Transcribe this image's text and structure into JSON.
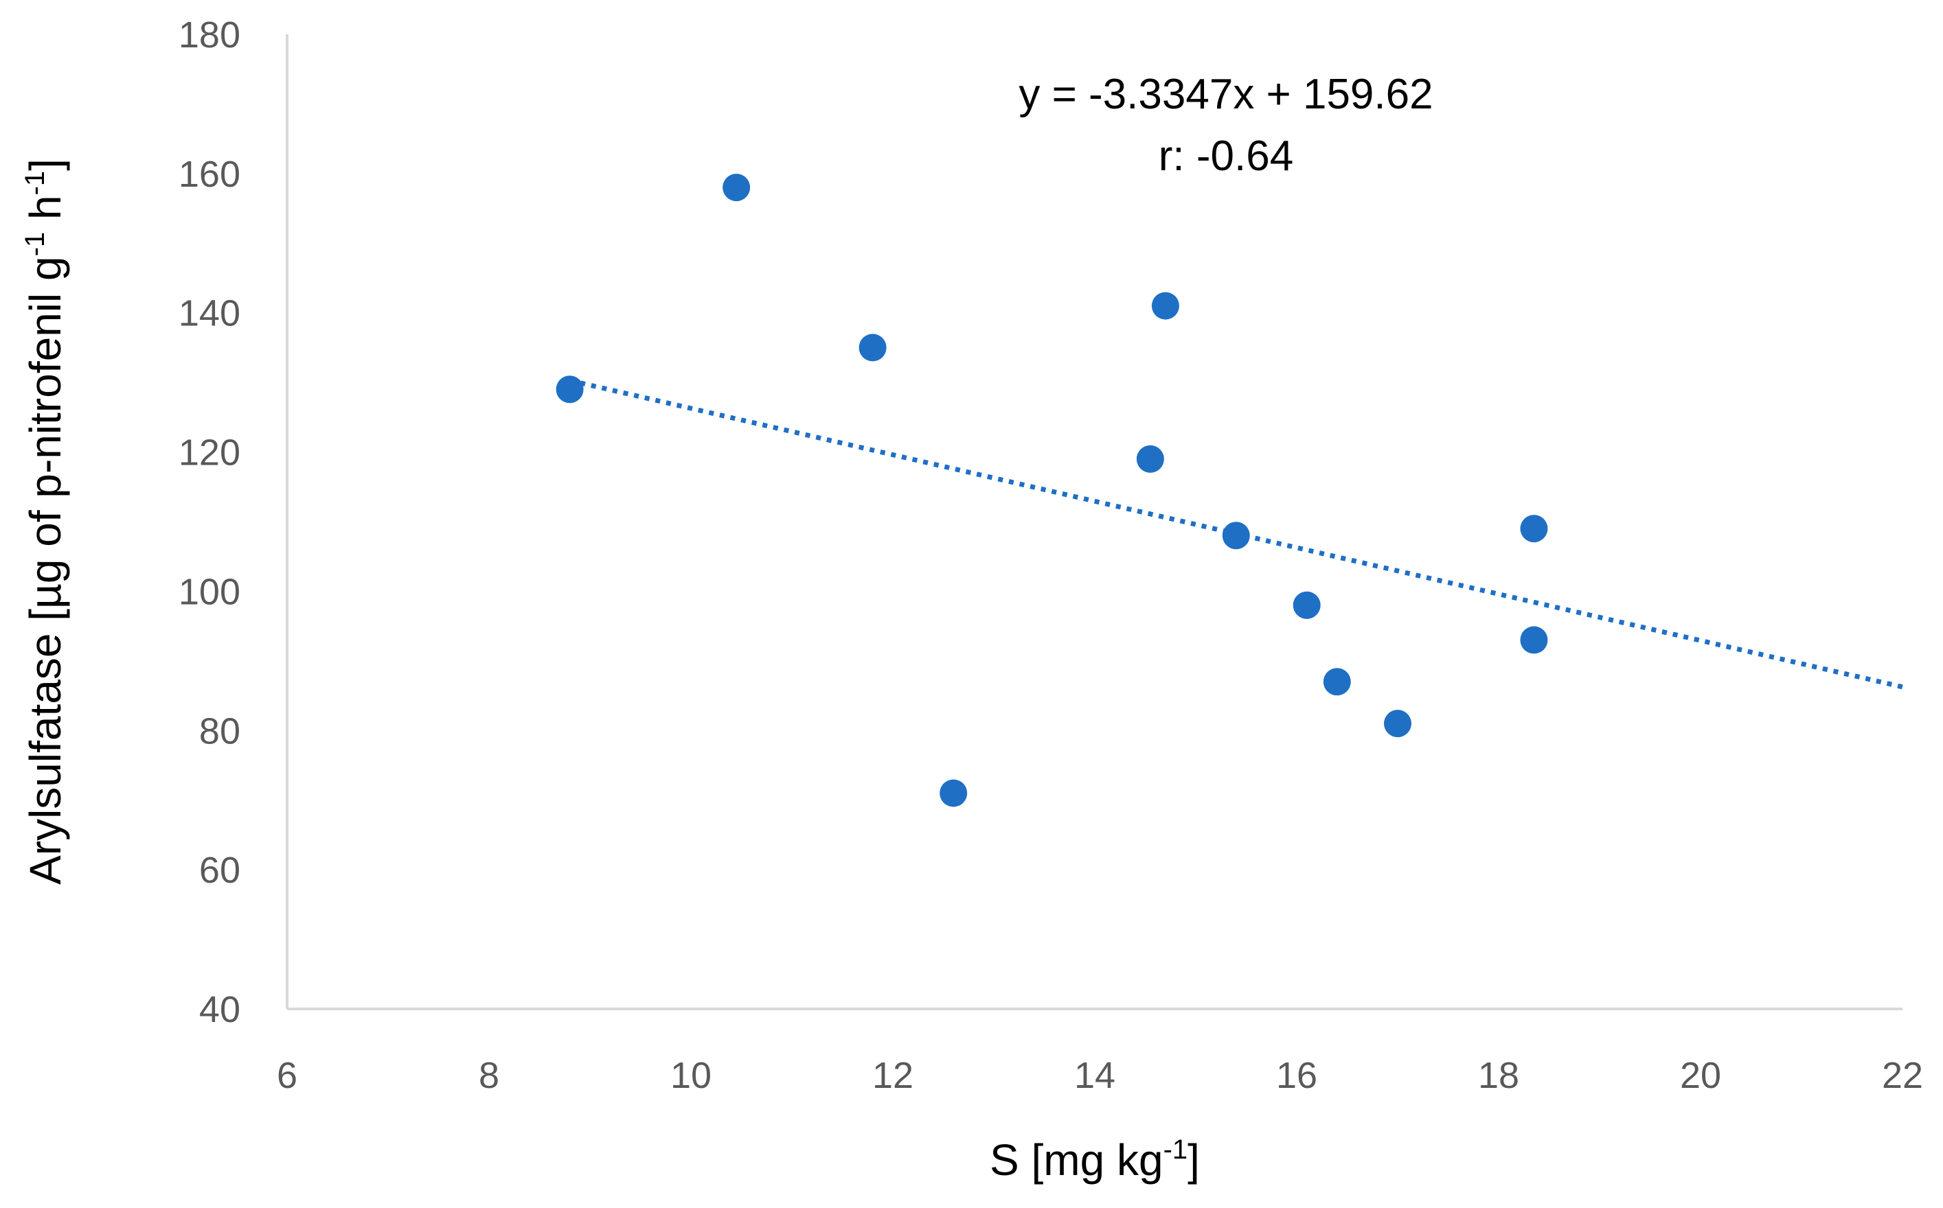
{
  "chart_data": {
    "type": "scatter",
    "title": "",
    "xlabel": {
      "main": "S [mg kg",
      "sup": "-1",
      "tail": "]"
    },
    "ylabel": {
      "main": "Arylsulfatase [µg of p-nitrofenil g",
      "sup1": "-1",
      "mid": " h",
      "sup2": "-1",
      "tail": "]"
    },
    "xlim": [
      6,
      22
    ],
    "ylim": [
      40,
      180
    ],
    "xticks": [
      6,
      8,
      10,
      12,
      14,
      16,
      18,
      20,
      22
    ],
    "yticks": [
      40,
      60,
      80,
      100,
      120,
      140,
      160,
      180
    ],
    "grid": false,
    "series": [
      {
        "name": "Arylsulfatase",
        "color": "#1f6fc5",
        "x": [
          8.8,
          10.45,
          11.8,
          12.6,
          14.55,
          14.7,
          15.4,
          16.1,
          16.4,
          17.0,
          18.35,
          18.35
        ],
        "y": [
          129,
          158,
          135,
          71,
          119,
          141,
          108,
          98,
          87,
          81,
          109,
          93
        ]
      }
    ],
    "trendline": {
      "style": "dotted",
      "color": "#1f6fc5",
      "slope": -3.3347,
      "intercept": 159.62,
      "x_range": [
        8.8,
        22
      ]
    },
    "annotations": {
      "equation": "y = -3.3347x + 159.62",
      "r": "r: -0.64"
    }
  }
}
